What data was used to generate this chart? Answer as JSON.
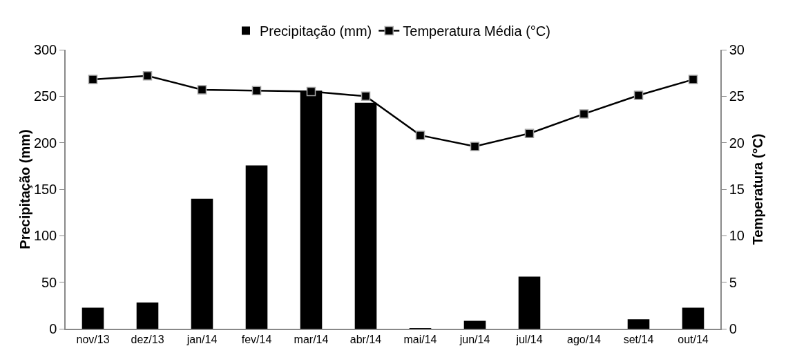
{
  "chart_data": {
    "type": "bar",
    "ylabel": "Precipitação (mm)",
    "y2label": "Temperatura (°C)",
    "categories": [
      "nov/13",
      "dez/13",
      "jan/14",
      "fev/14",
      "mar/14",
      "abr/14",
      "mai/14",
      "jun/14",
      "jul/14",
      "ago/14",
      "set/14",
      "out/14"
    ],
    "series": [
      {
        "name": "Precipitação (mm)",
        "color": "#000000",
        "values": [
          22.6,
          28.3,
          139.7,
          175.6,
          256,
          243,
          0.7,
          8.6,
          56,
          0,
          10.3,
          22.6
        ]
      },
      {
        "name": "Temperatura Média (°C)",
        "type": "line",
        "axis": "y2",
        "color": "#000000",
        "marker": "square",
        "values": [
          26.8,
          27.2,
          25.7,
          25.6,
          25.5,
          25.0,
          20.8,
          19.6,
          21.0,
          23.1,
          25.1,
          26.8
        ]
      }
    ],
    "ylim": [
      0,
      300
    ],
    "yticks": [
      0,
      50,
      100,
      150,
      200,
      250,
      300
    ],
    "y2lim": [
      0,
      30
    ],
    "y2ticks": [
      0,
      5,
      10,
      15,
      20,
      25,
      30
    ],
    "grid": false,
    "legend": "top"
  }
}
